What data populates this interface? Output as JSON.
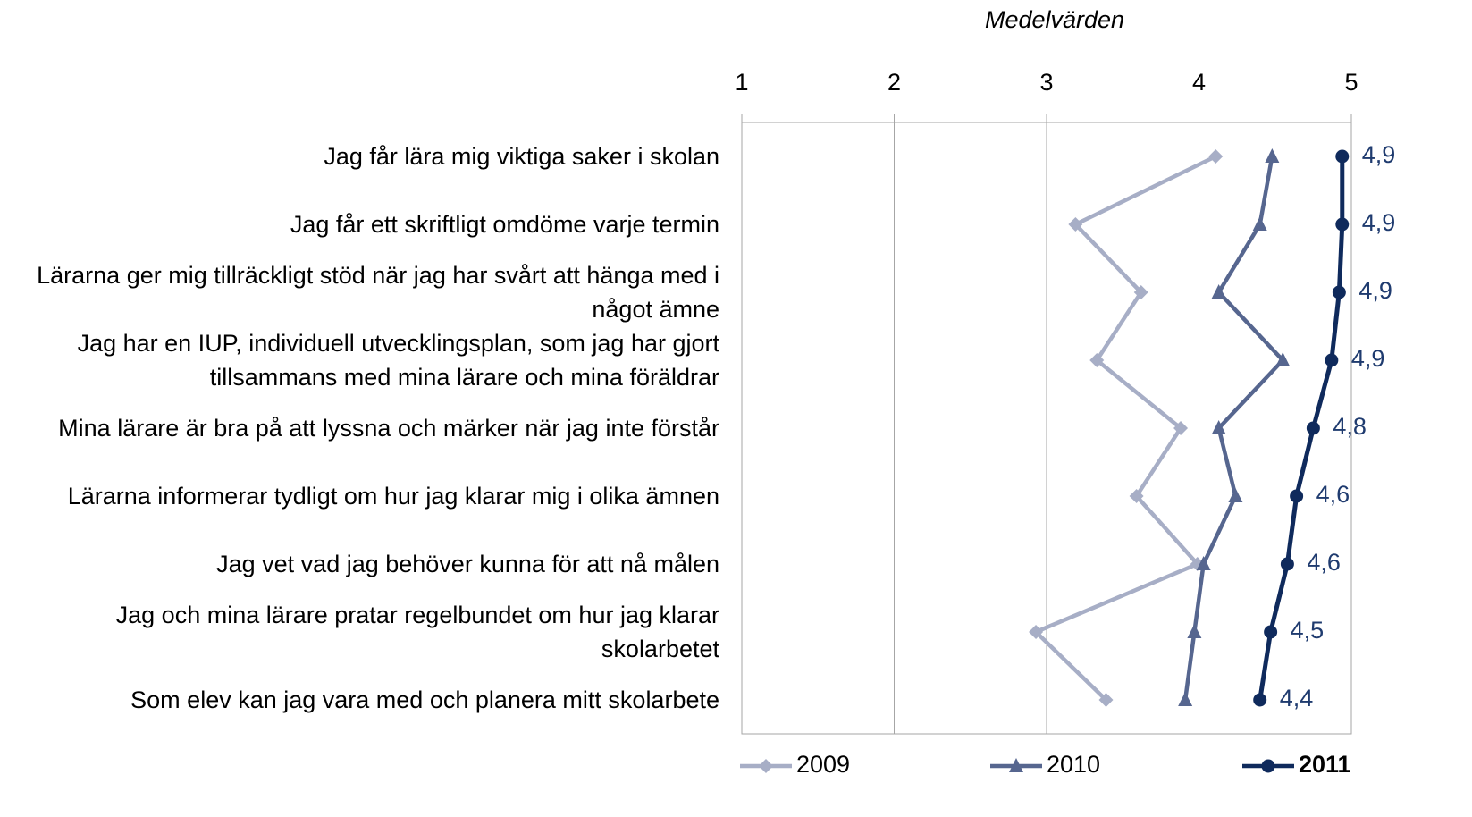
{
  "chart_data": {
    "type": "line",
    "title": "Medelvärden",
    "categories": [
      "Jag får lära mig viktiga saker i skolan",
      "Jag får ett skriftligt omdöme varje termin",
      "Lärarna ger mig tillräckligt stöd när jag har svårt att hänga med i något ämne",
      "Jag har en IUP, individuell utvecklingsplan, som jag har gjort tillsammans med mina lärare och mina föräldrar",
      "Mina lärare är bra på att lyssna och märker när jag inte förstår",
      "Lärarna informerar tydligt om hur jag klarar mig i olika ämnen",
      "Jag vet vad jag behöver kunna för att nå målen",
      "Jag och mina lärare pratar regelbundet om hur jag klarar skolarbetet",
      "Som elev kan jag vara med och planera mitt skolarbete"
    ],
    "series": [
      {
        "name": "2009",
        "color": "#a7aec6",
        "marker": "diamond",
        "values": [
          4.11,
          3.19,
          3.62,
          3.33,
          3.88,
          3.59,
          3.99,
          2.93,
          3.39
        ]
      },
      {
        "name": "2010",
        "color": "#56668f",
        "marker": "triangle",
        "values": [
          4.48,
          4.4,
          4.13,
          4.55,
          4.13,
          4.24,
          4.03,
          3.97,
          3.91
        ]
      },
      {
        "name": "2011",
        "color": "#0f2a5c",
        "marker": "circle",
        "values": [
          4.94,
          4.94,
          4.92,
          4.87,
          4.75,
          4.64,
          4.58,
          4.47,
          4.4
        ],
        "value_labels": [
          "4,9",
          "4,9",
          "4,9",
          "4,9",
          "4,8",
          "4,6",
          "4,6",
          "4,5",
          "4,4"
        ]
      }
    ],
    "xlim": [
      1,
      5
    ],
    "xticks": [
      1,
      2,
      3,
      4,
      5
    ],
    "grid": true,
    "legend": "bottom"
  }
}
